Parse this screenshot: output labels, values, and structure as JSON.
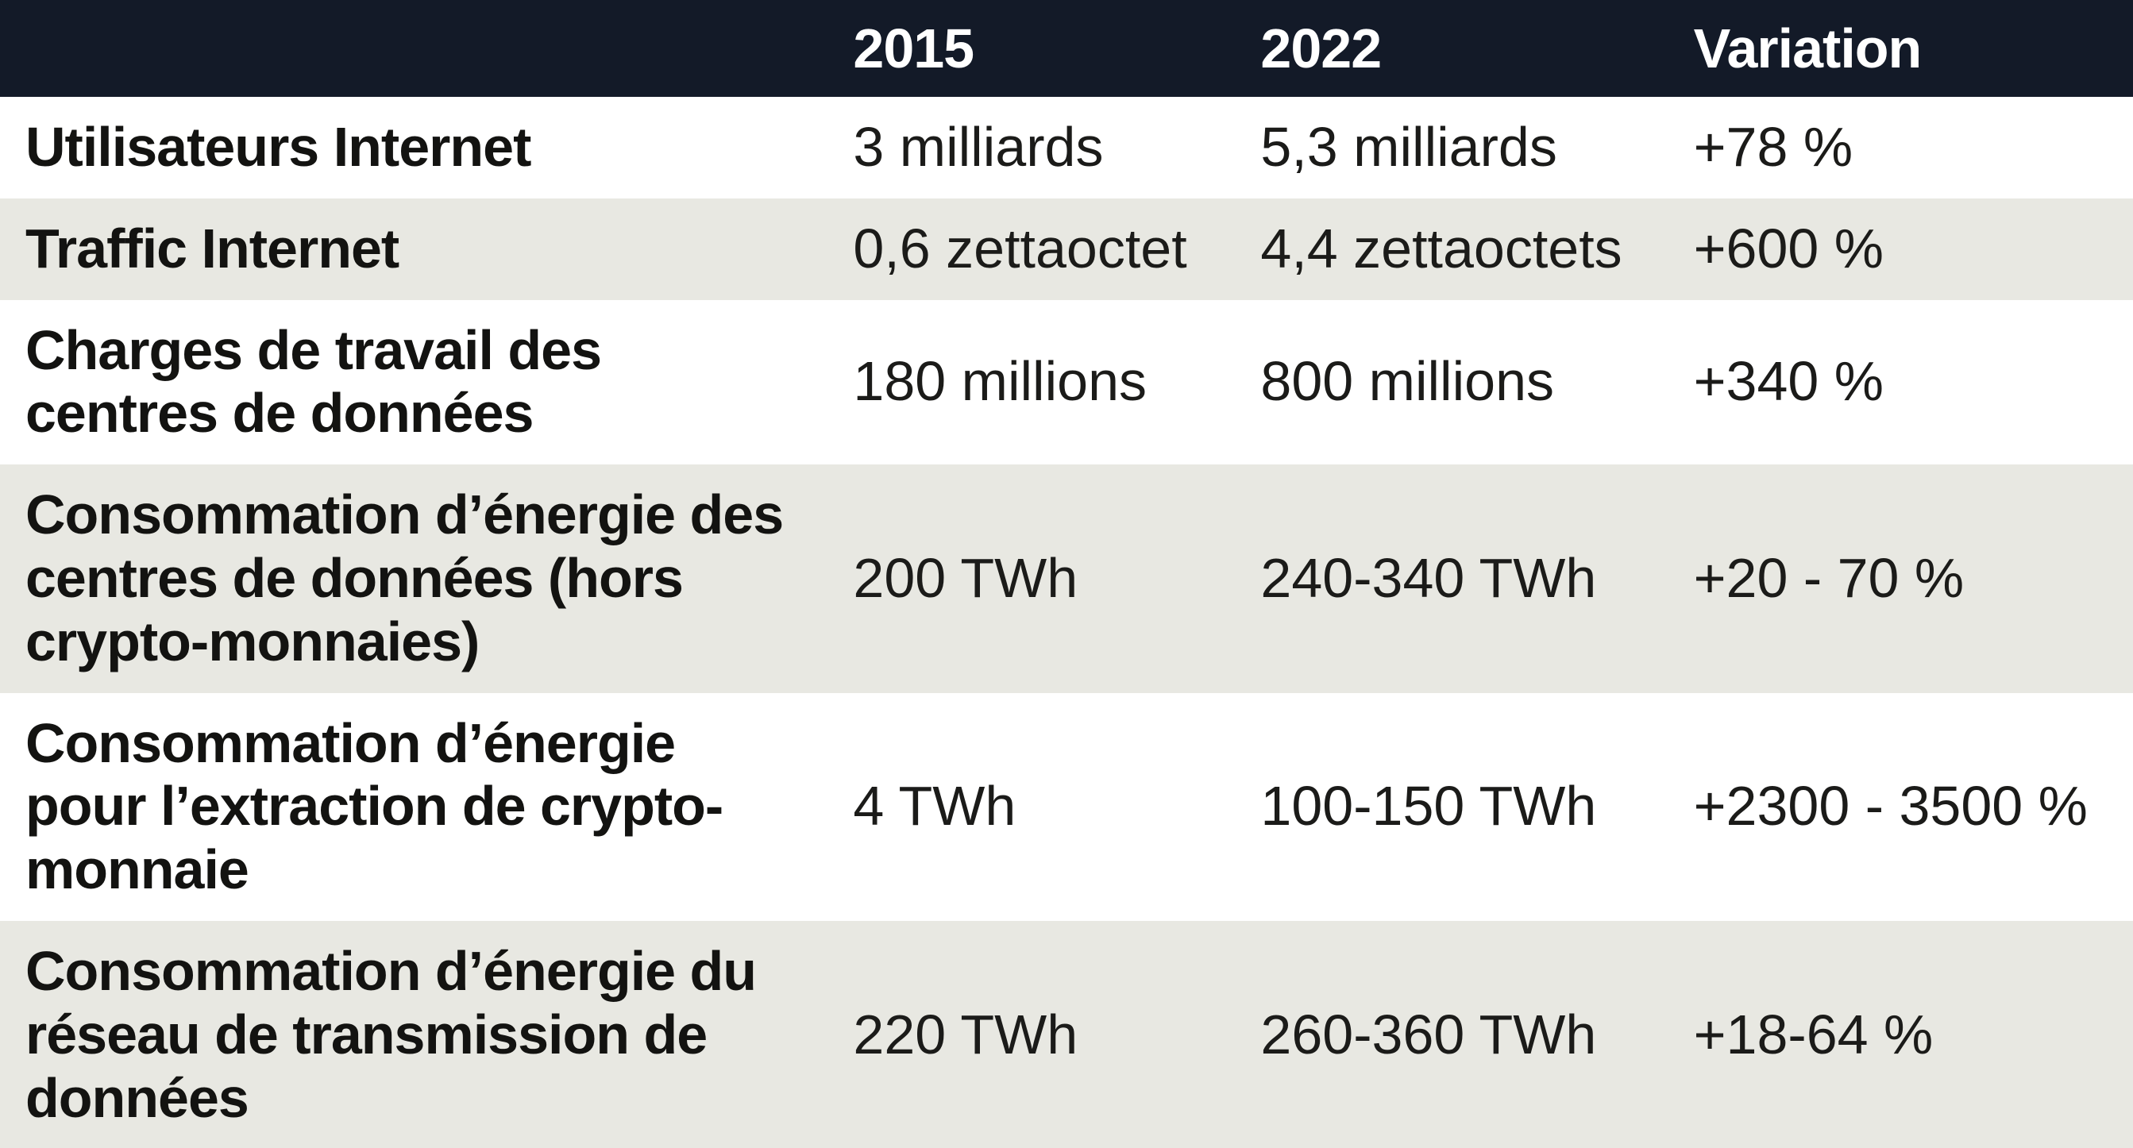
{
  "chart_data": {
    "type": "table",
    "title": "",
    "columns": [
      "",
      "2015",
      "2022",
      "Variation"
    ],
    "rows": [
      {
        "label": "Utilisateurs Internet",
        "v2015": "3 milliards",
        "v2022": "5,3 milliards",
        "variation": "+78 %"
      },
      {
        "label": "Traffic Internet",
        "v2015": "0,6 zettaoctet",
        "v2022": "4,4 zettaoctets",
        "variation": "+600 %"
      },
      {
        "label": "Charges de travail des\ncentres de données",
        "v2015": "180 millions",
        "v2022": "800 millions",
        "variation": "+340 %"
      },
      {
        "label": "Consommation d’énergie des\ncentres de données (hors\ncrypto-monnaies)",
        "v2015": "200 TWh",
        "v2022": "240-340 TWh",
        "variation": "+20 - 70 %"
      },
      {
        "label": "Consommation d’énergie\npour l’extraction de crypto-\nmonnaie",
        "v2015": "4 TWh",
        "v2022": "100-150 TWh",
        "variation": "+2300 - 3500 %"
      },
      {
        "label": "Consommation d’énergie du\nréseau de transmission de\ndonnées",
        "v2015": "220 TWh",
        "v2022": "260-360 TWh",
        "variation": "+18-64 %"
      }
    ],
    "colors": {
      "header_bg": "#131a28",
      "header_text": "#ffffff",
      "row_bg": "#ffffff",
      "row_alt_bg": "#e8e8e2",
      "text": "#1b1b19"
    },
    "layout": {
      "striped": true,
      "header_position": "top"
    }
  }
}
